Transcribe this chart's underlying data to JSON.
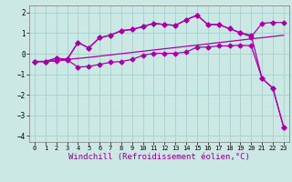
{
  "bg_color": "#cce8e4",
  "grid_color": "#aad4d0",
  "line_color": "#aa00aa",
  "xlabel": "Windchill (Refroidissement éolien,°C)",
  "xlim": [
    -0.5,
    23.5
  ],
  "ylim": [
    -4.3,
    2.35
  ],
  "xticks": [
    0,
    1,
    2,
    3,
    4,
    5,
    6,
    7,
    8,
    9,
    10,
    11,
    12,
    13,
    14,
    15,
    16,
    17,
    18,
    19,
    20,
    21,
    22,
    23
  ],
  "yticks": [
    -4,
    -3,
    -2,
    -1,
    0,
    1,
    2
  ],
  "series1_x": [
    0,
    1,
    2,
    3,
    4,
    5,
    6,
    7,
    8,
    9,
    10,
    11,
    12,
    13,
    14,
    15,
    16,
    17,
    18,
    19,
    20,
    21,
    22,
    23
  ],
  "series1_y": [
    -0.38,
    -0.38,
    -0.33,
    -0.28,
    -0.23,
    -0.18,
    -0.12,
    -0.06,
    0.0,
    0.06,
    0.12,
    0.18,
    0.24,
    0.3,
    0.36,
    0.42,
    0.48,
    0.54,
    0.6,
    0.66,
    0.72,
    0.78,
    0.84,
    0.9
  ],
  "series2_x": [
    0,
    1,
    2,
    3,
    4,
    5,
    6,
    7,
    8,
    9,
    10,
    11,
    12,
    13,
    14,
    15,
    16,
    17,
    18,
    19,
    20,
    21,
    22,
    23
  ],
  "series2_y": [
    -0.38,
    -0.38,
    -0.22,
    -0.28,
    0.55,
    0.28,
    0.78,
    0.9,
    1.12,
    1.18,
    1.32,
    1.48,
    1.42,
    1.38,
    1.65,
    1.88,
    1.42,
    1.42,
    1.22,
    1.02,
    0.82,
    1.48,
    1.52,
    1.52
  ],
  "series3_x": [
    0,
    1,
    2,
    3,
    4,
    5,
    6,
    7,
    8,
    9,
    10,
    11,
    12,
    13,
    14,
    15,
    16,
    17,
    18,
    19,
    20,
    21,
    22,
    23
  ],
  "series3_y": [
    -0.38,
    -0.38,
    -0.22,
    -0.28,
    0.55,
    0.28,
    0.78,
    0.9,
    1.12,
    1.18,
    1.32,
    1.48,
    1.42,
    1.38,
    1.65,
    1.88,
    1.42,
    1.42,
    1.22,
    1.02,
    0.9,
    -1.2,
    -1.68,
    -3.58
  ],
  "series4_x": [
    0,
    1,
    2,
    3,
    4,
    5,
    6,
    7,
    8,
    9,
    10,
    11,
    12,
    13,
    14,
    15,
    16,
    17,
    18,
    19,
    20,
    21,
    22,
    23
  ],
  "series4_y": [
    -0.38,
    -0.38,
    -0.35,
    -0.3,
    -0.65,
    -0.62,
    -0.52,
    -0.42,
    -0.38,
    -0.28,
    -0.08,
    0.02,
    0.02,
    0.02,
    0.08,
    0.32,
    0.32,
    0.38,
    0.38,
    0.42,
    0.38,
    -1.2,
    -1.68,
    -3.58
  ]
}
